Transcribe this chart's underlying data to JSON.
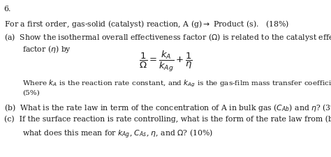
{
  "background_color": "#ffffff",
  "text_color": "#1a1a1a",
  "figsize": [
    4.74,
    2.25
  ],
  "dpi": 100,
  "font_size_main": 7.8,
  "font_size_small": 7.5
}
